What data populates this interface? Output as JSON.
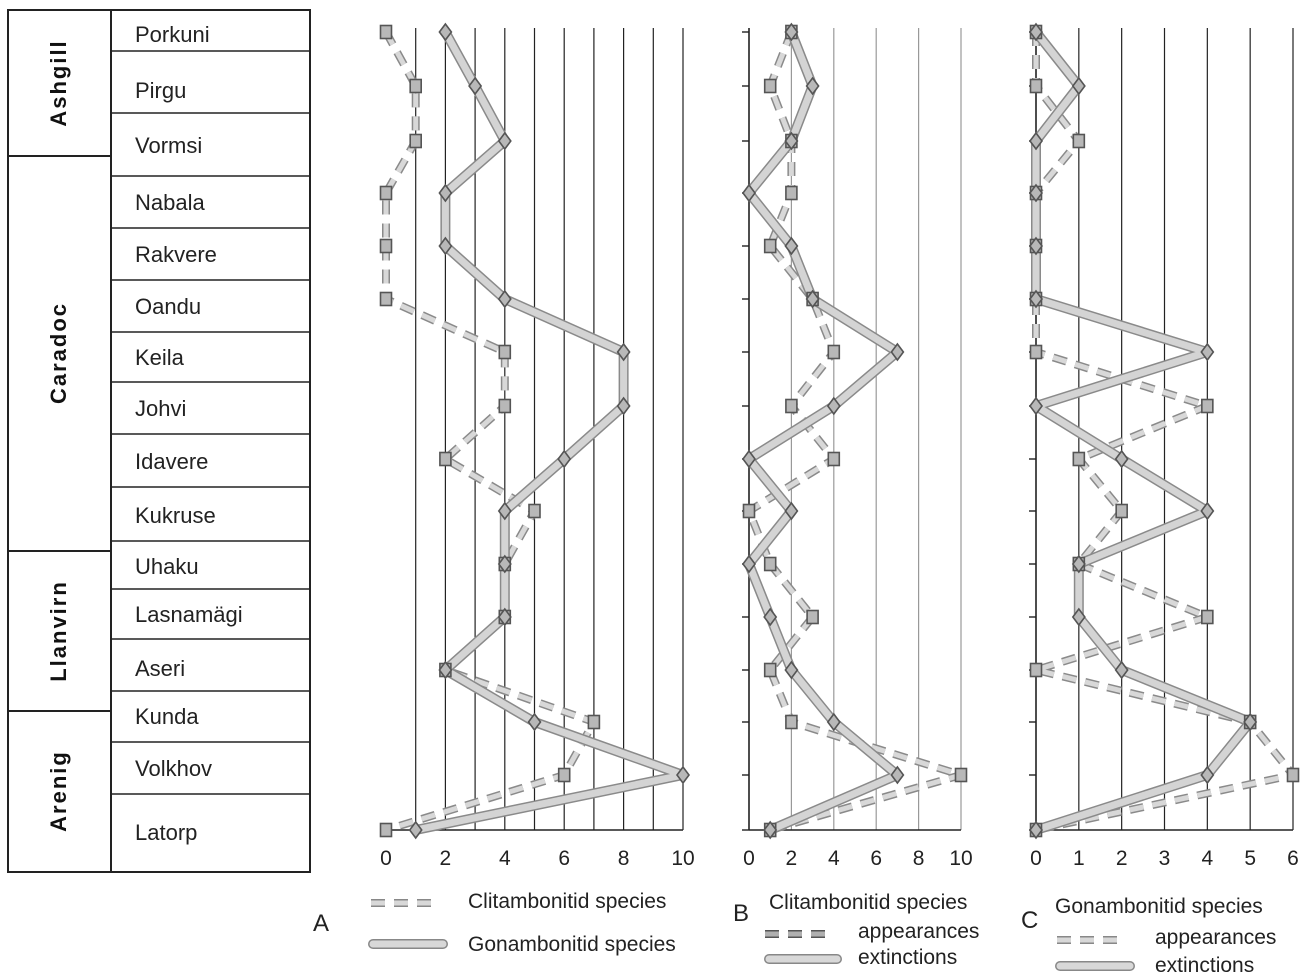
{
  "stratigraphy": {
    "series": [
      {
        "name": "Ashgill",
        "stages": 3
      },
      {
        "name": "Caradoc",
        "stages": 7
      },
      {
        "name": "Llanvirn",
        "stages": 3
      },
      {
        "name": "Arenig",
        "stages": 3
      }
    ],
    "stages": [
      "Porkuni",
      "Pirgu",
      "Vormsi",
      "Nabala",
      "Rakvere",
      "Oandu",
      "Keila",
      "Johvi",
      "Idavere",
      "Kukruse",
      "Uhaku",
      "Lasnamägi",
      "Aseri",
      "Kunda",
      "Volkhov",
      "Latorp"
    ]
  },
  "panels": [
    {
      "letter": "A",
      "ticks": [
        "0",
        "2",
        "4",
        "6",
        "8",
        "10"
      ]
    },
    {
      "letter": "B",
      "ticks": [
        "0",
        "2",
        "4",
        "6",
        "8",
        "10"
      ]
    },
    {
      "letter": "C",
      "ticks": [
        "0",
        "1",
        "2",
        "3",
        "4",
        "5",
        "6"
      ]
    }
  ],
  "legend": {
    "A": {
      "dashed": "Clitambonitid species",
      "solid": "Gonambonitid species"
    },
    "B": {
      "title": "Clitambonitid species",
      "dashed": "appearances",
      "solid": "extinctions"
    },
    "C": {
      "title": "Gonambonitid species",
      "dashed": "appearances",
      "solid": "extinctions"
    }
  },
  "colors": {
    "solid_fill": "#d4d4d4",
    "solid_edge": "#8a8a8a",
    "marker_fill": "#b8b8b8",
    "marker_edge": "#555555",
    "grid": "#222222"
  },
  "chart_data": [
    {
      "type": "line",
      "panel": "A",
      "xlim": [
        0,
        10
      ],
      "xlabel": "",
      "ylabel": "",
      "grid": true,
      "categories": [
        "Porkuni",
        "Pirgu",
        "Vormsi",
        "Nabala",
        "Rakvere",
        "Oandu",
        "Keila",
        "Johvi",
        "Idavere",
        "Kukruse",
        "Uhaku",
        "Lasnamägi",
        "Aseri",
        "Kunda",
        "Volkhov",
        "Latorp"
      ],
      "series": [
        {
          "name": "Clitambonitid species",
          "style": "dashed",
          "marker": "square",
          "values": [
            0,
            1,
            1,
            0,
            0,
            0,
            4,
            4,
            2,
            5,
            4,
            4,
            2,
            7,
            6,
            0
          ]
        },
        {
          "name": "Gonambonitid species",
          "style": "solid",
          "marker": "diamond",
          "values": [
            2,
            3,
            4,
            2,
            2,
            4,
            8,
            8,
            6,
            4,
            4,
            4,
            2,
            5,
            10,
            1
          ]
        }
      ]
    },
    {
      "type": "line",
      "panel": "B",
      "title": "Clitambonitid species",
      "xlim": [
        0,
        10
      ],
      "xlabel": "",
      "ylabel": "",
      "grid": true,
      "categories": [
        "Porkuni",
        "Pirgu",
        "Vormsi",
        "Nabala",
        "Rakvere",
        "Oandu",
        "Keila",
        "Johvi",
        "Idavere",
        "Kukruse",
        "Uhaku",
        "Lasnamägi",
        "Aseri",
        "Kunda",
        "Volkhov",
        "Latorp"
      ],
      "series": [
        {
          "name": "appearances",
          "style": "dashed",
          "marker": "square",
          "values": [
            2,
            1,
            2,
            2,
            1,
            3,
            4,
            2,
            4,
            0,
            1,
            3,
            1,
            2,
            10,
            1
          ]
        },
        {
          "name": "extinctions",
          "style": "solid",
          "marker": "diamond",
          "values": [
            2,
            3,
            2,
            0,
            2,
            3,
            7,
            4,
            0,
            2,
            0,
            1,
            2,
            4,
            7,
            1
          ]
        }
      ]
    },
    {
      "type": "line",
      "panel": "C",
      "title": "Gonambonitid species",
      "xlim": [
        0,
        6
      ],
      "xlabel": "",
      "ylabel": "",
      "grid": true,
      "categories": [
        "Porkuni",
        "Pirgu",
        "Vormsi",
        "Nabala",
        "Rakvere",
        "Oandu",
        "Keila",
        "Johvi",
        "Idavere",
        "Kukruse",
        "Uhaku",
        "Lasnamägi",
        "Aseri",
        "Kunda",
        "Volkhov",
        "Latorp"
      ],
      "series": [
        {
          "name": "appearances",
          "style": "dashed",
          "marker": "square",
          "values": [
            0,
            0,
            1,
            0,
            0,
            0,
            0,
            4,
            1,
            2,
            1,
            4,
            0,
            5,
            6,
            0
          ]
        },
        {
          "name": "extinctions",
          "style": "solid",
          "marker": "diamond",
          "values": [
            0,
            1,
            0,
            0,
            0,
            0,
            4,
            0,
            2,
            4,
            1,
            1,
            2,
            5,
            4,
            0
          ]
        }
      ]
    }
  ]
}
